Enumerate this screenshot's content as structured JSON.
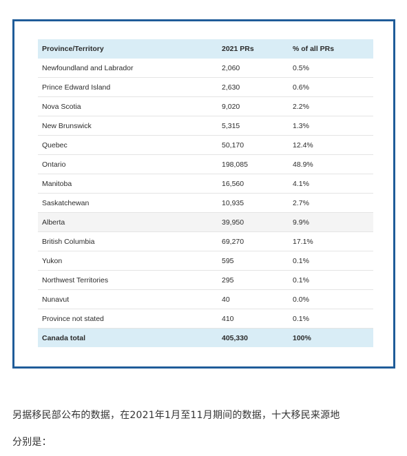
{
  "table": {
    "headers": [
      "Province/Territory",
      "2021 PRs",
      "% of all PRs"
    ],
    "rows": [
      [
        "Newfoundland and Labrador",
        "2,060",
        "0.5%"
      ],
      [
        "Prince Edward Island",
        "2,630",
        "0.6%"
      ],
      [
        "Nova Scotia",
        "9,020",
        "2.2%"
      ],
      [
        "New Brunswick",
        "5,315",
        "1.3%"
      ],
      [
        "Quebec",
        "50,170",
        "12.4%"
      ],
      [
        "Ontario",
        "198,085",
        "48.9%"
      ],
      [
        "Manitoba",
        "16,560",
        "4.1%"
      ],
      [
        "Saskatchewan",
        "10,935",
        "2.7%"
      ],
      [
        "Alberta",
        "39,950",
        "9.9%"
      ],
      [
        "British Columbia",
        "69,270",
        "17.1%"
      ],
      [
        "Yukon",
        "595",
        "0.1%"
      ],
      [
        "Northwest Territories",
        "295",
        "0.1%"
      ],
      [
        "Nunavut",
        "40",
        "0.0%"
      ],
      [
        "Province not stated",
        "410",
        "0.1%"
      ]
    ],
    "total": [
      "Canada total",
      "405,330",
      "100%"
    ]
  },
  "caption": {
    "line1": "另据移民部公布的数据，在2021年1月至11月期间的数据，十大移民来源地",
    "line2": "分别是："
  },
  "colors": {
    "frame_border": "#1f5c99",
    "header_bg": "#d9edf6",
    "shaded_row_bg": "#f4f4f4"
  }
}
